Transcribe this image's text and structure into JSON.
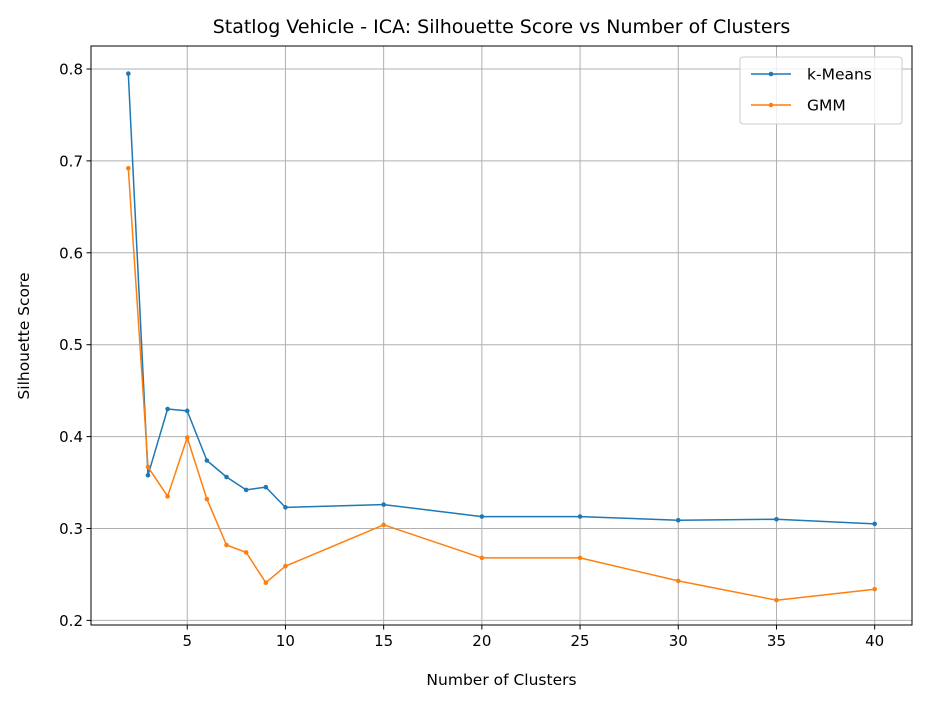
{
  "chart_data": {
    "type": "line",
    "title": "Statlog Vehicle - ICA: Silhouette Score vs Number of Clusters",
    "xlabel": "Number of Clusters",
    "ylabel": "Silhouette Score",
    "xlim": [
      0.1,
      41.9
    ],
    "ylim": [
      0.195,
      0.825
    ],
    "xticks": [
      5,
      10,
      15,
      20,
      25,
      30,
      35,
      40
    ],
    "yticks": [
      0.2,
      0.3,
      0.4,
      0.5,
      0.6,
      0.7,
      0.8
    ],
    "grid": true,
    "legend_position": "top-right",
    "x": [
      2,
      3,
      4,
      5,
      6,
      7,
      8,
      9,
      10,
      15,
      20,
      25,
      30,
      35,
      40
    ],
    "series": [
      {
        "name": "k-Means",
        "color": "#1f77b4",
        "values": [
          0.795,
          0.358,
          0.43,
          0.428,
          0.374,
          0.356,
          0.342,
          0.345,
          0.323,
          0.326,
          0.313,
          0.313,
          0.309,
          0.31,
          0.305
        ]
      },
      {
        "name": "GMM",
        "color": "#ff7f0e",
        "values": [
          0.692,
          0.367,
          0.335,
          0.399,
          0.332,
          0.282,
          0.274,
          0.241,
          0.259,
          0.304,
          0.268,
          0.268,
          0.243,
          0.222,
          0.234
        ]
      }
    ]
  }
}
